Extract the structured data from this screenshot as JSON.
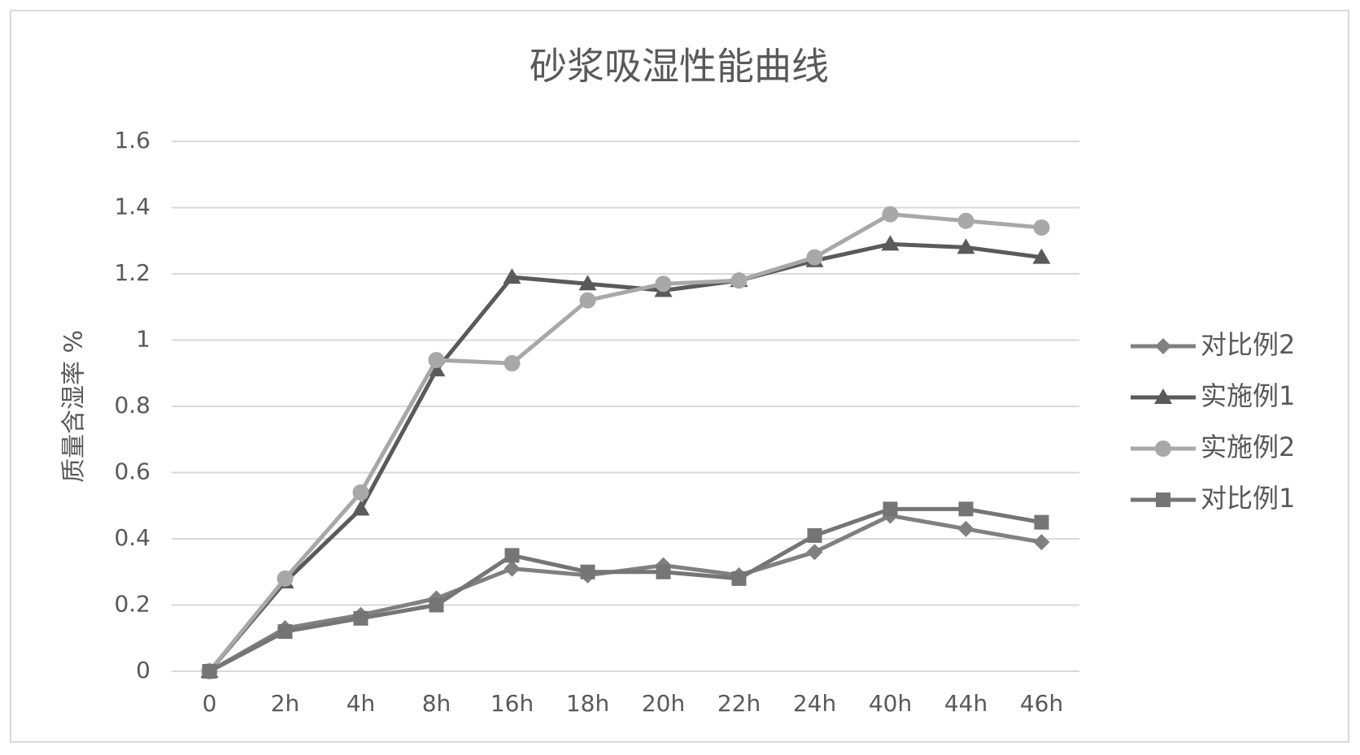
{
  "chart_data": {
    "type": "line",
    "title": "砂浆吸湿性能曲线",
    "y_label": "质量含湿率 %",
    "categories": [
      "0",
      "2h",
      "4h",
      "8h",
      "16h",
      "18h",
      "20h",
      "22h",
      "24h",
      "40h",
      "44h",
      "46h"
    ],
    "series": [
      {
        "name": "对比例2",
        "color": "#808080",
        "marker": "diamond",
        "values": [
          0,
          0.13,
          0.17,
          0.22,
          0.31,
          0.29,
          0.32,
          0.29,
          0.36,
          0.47,
          0.43,
          0.39
        ]
      },
      {
        "name": "实施例1",
        "color": "#5a5a5a",
        "marker": "triangle",
        "values": [
          0,
          0.27,
          0.49,
          0.91,
          1.19,
          1.17,
          1.15,
          1.18,
          1.24,
          1.29,
          1.28,
          1.25
        ]
      },
      {
        "name": "实施例2",
        "color": "#a8a8a8",
        "marker": "circle",
        "values": [
          0,
          0.28,
          0.54,
          0.94,
          0.93,
          1.12,
          1.17,
          1.18,
          1.25,
          1.38,
          1.36,
          1.34
        ]
      },
      {
        "name": "对比例1",
        "color": "#757575",
        "marker": "square",
        "values": [
          0,
          0.12,
          0.16,
          0.2,
          0.35,
          0.3,
          0.3,
          0.28,
          0.41,
          0.49,
          0.49,
          0.45
        ]
      }
    ],
    "ylim": [
      0,
      1.6
    ],
    "yticks": [
      0,
      0.2,
      0.4,
      0.6,
      0.8,
      1,
      1.2,
      1.4,
      1.6
    ],
    "grid": true,
    "legend": "right"
  }
}
